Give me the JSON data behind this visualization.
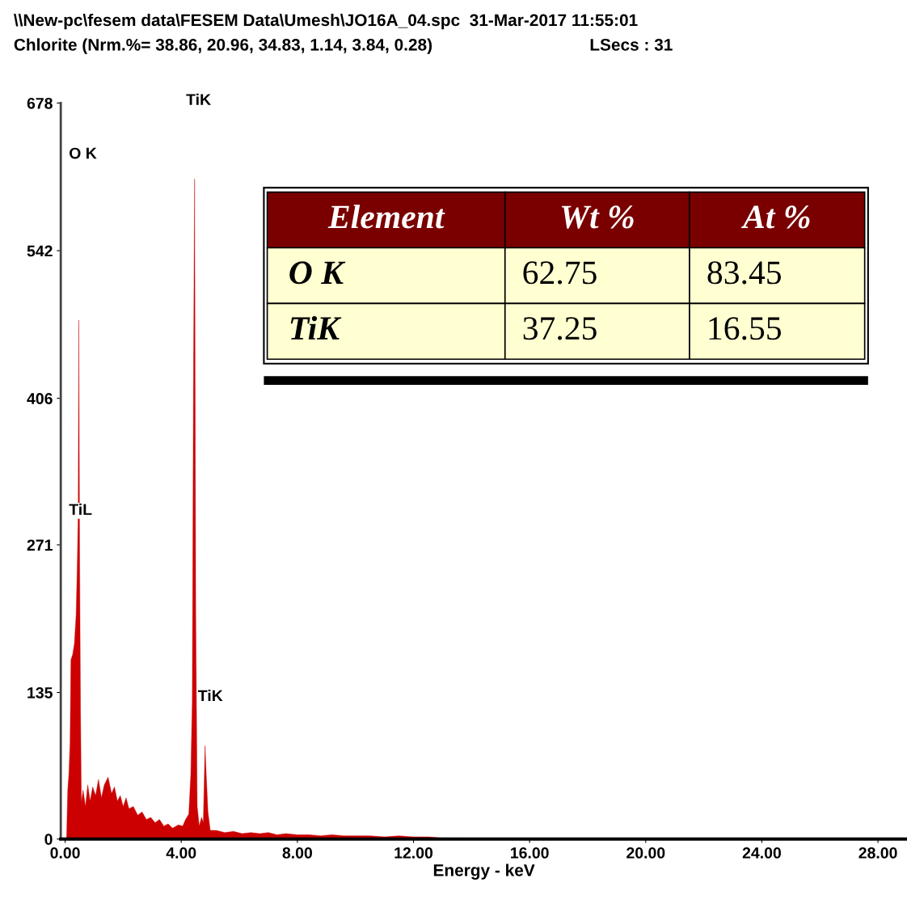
{
  "chart_data": {
    "type": "area",
    "title": "\\\\New-pc\\fesem data\\FESEM Data\\Umesh\\JO16A_04.spc  31-Mar-2017 11:55:01",
    "subtitle": "Chlorite (Nrm.%= 38.86, 20.96, 34.83, 1.14, 3.84, 0.28)",
    "xlabel": "Energy - keV",
    "x": [
      0.05,
      0.09,
      0.13,
      0.17,
      0.2,
      0.26,
      0.32,
      0.38,
      0.42,
      0.45,
      0.47,
      0.5,
      0.53,
      0.56,
      0.62,
      0.7,
      0.78,
      0.86,
      0.95,
      1.05,
      1.15,
      1.25,
      1.35,
      1.48,
      1.6,
      1.7,
      1.8,
      1.9,
      2.0,
      2.1,
      2.2,
      2.35,
      2.5,
      2.65,
      2.8,
      2.95,
      3.1,
      3.25,
      3.4,
      3.55,
      3.7,
      3.9,
      4.05,
      4.15,
      4.26,
      4.33,
      4.38,
      4.42,
      4.46,
      4.5,
      4.55,
      4.62,
      4.7,
      4.76,
      4.82,
      4.86,
      4.92,
      5.0,
      5.2,
      5.5,
      5.8,
      6.1,
      6.4,
      6.7,
      7.0,
      7.3,
      7.6,
      8.0,
      8.4,
      8.8,
      9.2,
      9.6,
      10.0,
      10.5,
      11.0,
      11.5,
      12.0,
      12.5,
      13.0,
      13.5,
      13.9,
      14.0
    ],
    "series": [
      {
        "color": "#cc0000",
        "values": [
          0,
          45,
          60,
          88,
          165,
          170,
          180,
          207,
          254,
          300,
          478,
          260,
          120,
          34,
          45,
          30,
          50,
          35,
          48,
          40,
          55,
          38,
          50,
          57,
          42,
          48,
          35,
          40,
          30,
          38,
          28,
          30,
          22,
          25,
          18,
          20,
          15,
          18,
          12,
          14,
          10,
          13,
          12,
          18,
          23,
          60,
          127,
          416,
          608,
          209,
          30,
          12,
          20,
          15,
          86,
          60,
          25,
          8,
          8,
          6,
          7,
          5,
          6,
          5,
          6,
          4,
          5,
          4,
          4,
          3,
          4,
          3,
          3,
          3,
          2,
          3,
          2,
          2,
          1,
          1,
          1,
          0
        ]
      }
    ],
    "xlim": [
      -0.15,
      29.0
    ],
    "xticks": [
      {
        "value": 0,
        "label": "0.00"
      },
      {
        "value": 4,
        "label": "4.00"
      },
      {
        "value": 8,
        "label": "8.00"
      },
      {
        "value": 12,
        "label": "12.00"
      },
      {
        "value": 16,
        "label": "16.00"
      },
      {
        "value": 20,
        "label": "20.00"
      },
      {
        "value": 24,
        "label": "24.00"
      },
      {
        "value": 28,
        "label": "28.00"
      }
    ],
    "ylim": [
      0,
      678
    ],
    "yticks": [
      0,
      135,
      271,
      406,
      542,
      678
    ],
    "grid": false,
    "legend": false,
    "annotations": [
      "O K",
      "TiK",
      "TiL",
      "TiK",
      "LSecs : 31",
      "Element",
      "Wt %",
      "At %",
      "O K",
      "62.75",
      "83.45",
      "TiK",
      "37.25",
      "16.55"
    ]
  }
}
